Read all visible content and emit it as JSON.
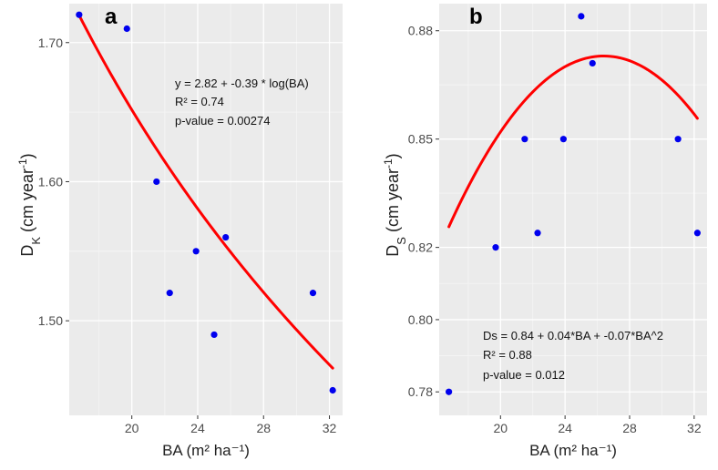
{
  "colors": {
    "panel_bg": "#ebebeb",
    "grid_major": "#ffffff",
    "grid_minor": "#f5f5f5",
    "point": "#0000ee",
    "fit_line": "#ff0000",
    "tick_text": "#4d4d4d",
    "axis_title": "#222222"
  },
  "chart_data": [
    {
      "type": "scatter",
      "panel_label": "a",
      "xlabel": "BA (m² ha⁻¹)",
      "ylabel_main": "D",
      "ylabel_sub": "K",
      "ylabel_unit": " (cm year",
      "ylabel_exp": "-1",
      "ylabel_close": ")",
      "xlim": [
        16.2,
        32.8
      ],
      "ylim": [
        1.432,
        1.728
      ],
      "xticks": [
        20,
        24,
        28,
        32
      ],
      "yticks": [
        1.5,
        1.6,
        1.7
      ],
      "ytick_labels": [
        "1.50",
        "1.60",
        "1.70"
      ],
      "points": [
        {
          "x": 16.8,
          "y": 1.72
        },
        {
          "x": 19.7,
          "y": 1.71
        },
        {
          "x": 21.5,
          "y": 1.6
        },
        {
          "x": 22.3,
          "y": 1.52
        },
        {
          "x": 23.9,
          "y": 1.55
        },
        {
          "x": 25.0,
          "y": 1.49
        },
        {
          "x": 25.7,
          "y": 1.56
        },
        {
          "x": 31.0,
          "y": 1.52
        },
        {
          "x": 32.2,
          "y": 1.45
        }
      ],
      "fit": {
        "model": "log",
        "intercept": 2.82,
        "slope": -0.39,
        "x_range": [
          16.8,
          32.2
        ]
      },
      "annotations": [
        "y = 2.82 + -0.39 * log(BA)",
        "R² =  0.74",
        "p-value =  0.00274"
      ],
      "grid": true
    },
    {
      "type": "scatter",
      "panel_label": "b",
      "xlabel": "BA (m² ha⁻¹)",
      "ylabel_main": "D",
      "ylabel_sub": "S",
      "ylabel_unit": " (cm year",
      "ylabel_exp": "-1",
      "ylabel_close": ")",
      "xlim": [
        16.2,
        32.8
      ],
      "ylim": [
        0.7735,
        0.8875
      ],
      "xticks": [
        20,
        24,
        28,
        32
      ],
      "yticks": [
        0.78,
        0.8,
        0.82,
        0.85,
        0.88
      ],
      "ytick_labels": [
        "0.78",
        "0.80",
        "0.82",
        "0.85",
        "0.88"
      ],
      "points": [
        {
          "x": 16.8,
          "y": 0.78
        },
        {
          "x": 19.7,
          "y": 0.82
        },
        {
          "x": 21.5,
          "y": 0.85
        },
        {
          "x": 22.3,
          "y": 0.824
        },
        {
          "x": 23.9,
          "y": 0.85
        },
        {
          "x": 25.0,
          "y": 0.884
        },
        {
          "x": 25.7,
          "y": 0.871
        },
        {
          "x": 31.0,
          "y": 0.85
        },
        {
          "x": 32.2,
          "y": 0.824
        }
      ],
      "fit": {
        "model": "quadratic",
        "vertex_x": 26.4,
        "vertex_y": 0.873,
        "a": -0.000513,
        "x_range": [
          16.8,
          32.2
        ]
      },
      "annotations": [
        "Ds = 0.84 + 0.04*BA + -0.07*BA^2",
        "R² = 0.88",
        "p-value = 0.012"
      ],
      "grid": true
    }
  ]
}
